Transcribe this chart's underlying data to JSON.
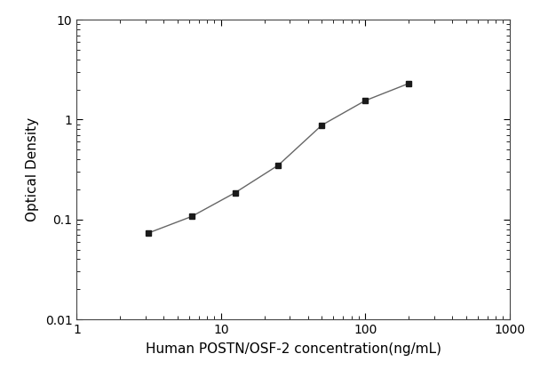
{
  "x": [
    3.125,
    6.25,
    12.5,
    25,
    50,
    100,
    200
  ],
  "y": [
    0.073,
    0.107,
    0.185,
    0.35,
    0.88,
    1.55,
    2.3
  ],
  "xlim": [
    1,
    1000
  ],
  "ylim": [
    0.01,
    10
  ],
  "xlabel": "Human POSTN/OSF-2 concentration(ng/mL)",
  "ylabel": "Optical Density",
  "line_color": "#666666",
  "marker_color": "#1a1a1a",
  "marker": "s",
  "marker_size": 5,
  "line_width": 1.0,
  "background_color": "#ffffff",
  "xticks": [
    1,
    10,
    100,
    1000
  ],
  "yticks": [
    0.01,
    0.1,
    1,
    10
  ],
  "ytick_labels": [
    "0.01",
    "0.1",
    "1",
    "10"
  ],
  "xtick_labels": [
    "1",
    "10",
    "100",
    "1000"
  ],
  "xlabel_fontsize": 11,
  "ylabel_fontsize": 11,
  "tick_fontsize": 10
}
